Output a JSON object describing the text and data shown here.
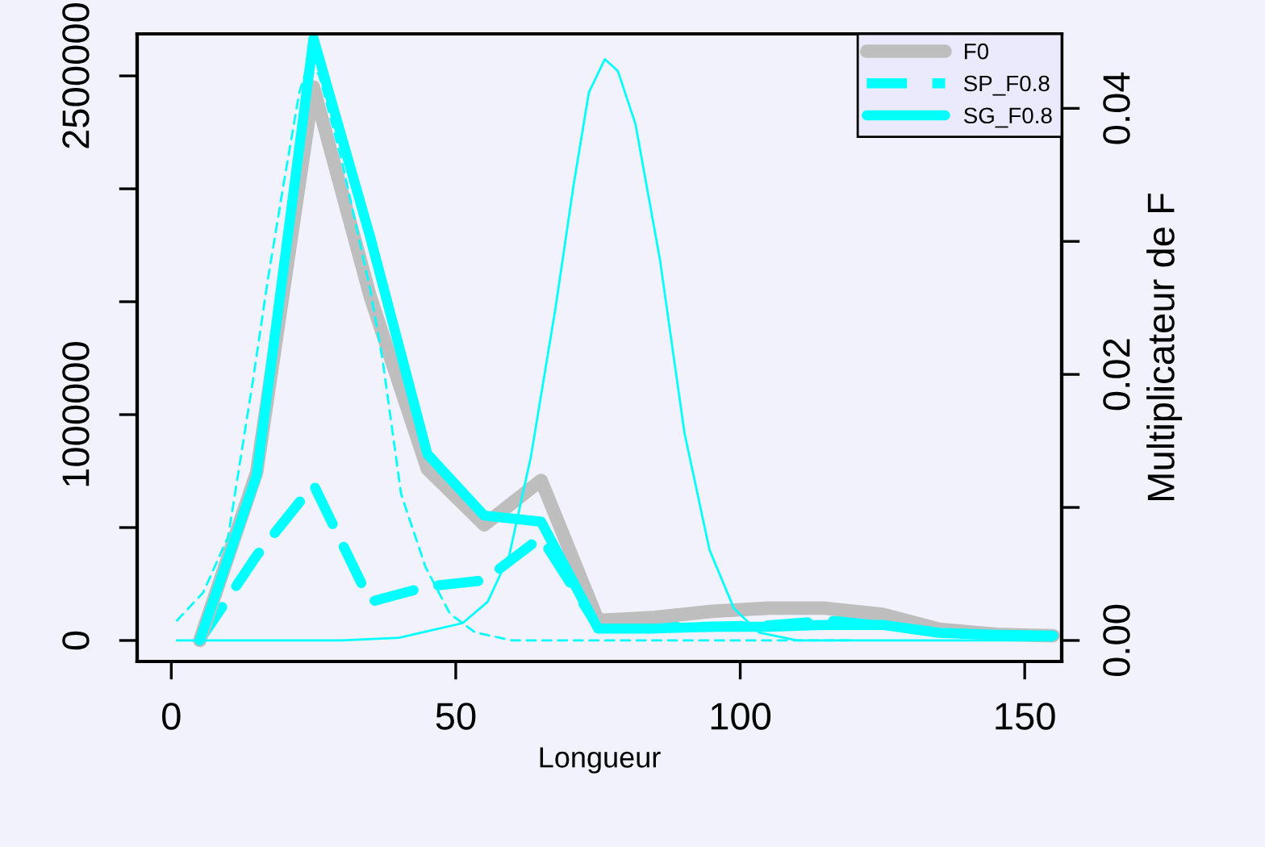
{
  "chart_data": {
    "type": "line",
    "xlabel": "Longueur",
    "y2label": "Multiplicateur de F",
    "xlim": [
      -6,
      156.5
    ],
    "xticks": [
      0,
      50,
      100,
      150
    ],
    "ylim": [
      -93000,
      2686000
    ],
    "yticks": [
      0,
      {
        "value": 500000,
        "label": null
      },
      1000000,
      {
        "value": 1500000,
        "label": null
      },
      {
        "value": 2000000,
        "label": null
      },
      2500000
    ],
    "y2lim": [
      -0.00158,
      0.0456
    ],
    "y2ticks": [
      {
        "value": 0,
        "label": "0.00"
      },
      {
        "value": 0.01,
        "label": null
      },
      {
        "value": 0.02,
        "label": "0.02"
      },
      {
        "value": 0.03,
        "label": null
      },
      {
        "value": 0.04,
        "label": "0.04"
      }
    ],
    "legend": "top right",
    "grid": false,
    "series": [
      {
        "name": "SP_F0.8",
        "color": "#00ffff",
        "line_style": "dashed",
        "x": [
          5,
          15,
          25,
          35,
          45,
          55,
          65,
          75,
          85,
          95,
          105,
          115,
          125,
          135,
          145,
          155
        ],
        "values": [
          0,
          376000,
          690000,
          171000,
          239000,
          266000,
          457000,
          61000,
          61000,
          61000,
          67000,
          86000,
          89000,
          34000,
          25000,
          21000
        ]
      },
      {
        "name": "F0",
        "color": "#bebebe",
        "line_style": "solid",
        "x": [
          5,
          15,
          25,
          35,
          45,
          55,
          65,
          75,
          85,
          95,
          105,
          115,
          125,
          135,
          145,
          155
        ],
        "values": [
          0,
          744000,
          2450000,
          1520000,
          760000,
          512000,
          709000,
          89000,
          102000,
          129000,
          143000,
          143000,
          116000,
          50000,
          27000,
          21000
        ]
      },
      {
        "name": "SG_F0.8",
        "color": "#00ffff",
        "line_style": "solid",
        "x": [
          5,
          15,
          25,
          35,
          45,
          55,
          65,
          75,
          85,
          95,
          105,
          115,
          125,
          135,
          145,
          155
        ],
        "values": [
          0,
          731000,
          2666000,
          1783000,
          826000,
          553000,
          526000,
          53000,
          53000,
          61000,
          61000,
          69000,
          69000,
          34000,
          25000,
          21000
        ]
      },
      {
        "color": "#00ffff",
        "line_style": "dashed",
        "axis": "y2",
        "x": [
          1,
          5.6,
          10,
          14.3,
          17,
          19.7,
          22.5,
          24.2,
          26,
          30,
          35,
          37.1,
          40.4,
          44.7,
          49,
          53.4,
          60,
          80,
          100,
          120
        ],
        "values": [
          0.0015,
          0.0036,
          0.0078,
          0.0194,
          0.0272,
          0.0342,
          0.0412,
          0.0435,
          0.0425,
          0.036,
          0.0263,
          0.0212,
          0.011,
          0.0055,
          0.002,
          0.0006,
          0.0,
          0.0,
          0.0,
          0.0
        ]
      },
      {
        "color": "#00ffff",
        "line_style": "solid",
        "axis": "y2",
        "x": [
          1,
          30,
          40,
          51.2,
          55.6,
          59.4,
          63.2,
          67.5,
          70.7,
          73.4,
          76.2,
          78.5,
          81.6,
          85.9,
          90.2,
          94.6,
          98.9,
          103.3,
          110,
          155
        ],
        "values": [
          0.0,
          0.0,
          0.0002,
          0.0013,
          0.0029,
          0.0064,
          0.0138,
          0.0249,
          0.0342,
          0.0412,
          0.0437,
          0.0428,
          0.0388,
          0.0286,
          0.0156,
          0.0068,
          0.0024,
          0.0006,
          0.0,
          0.0
        ]
      }
    ]
  }
}
